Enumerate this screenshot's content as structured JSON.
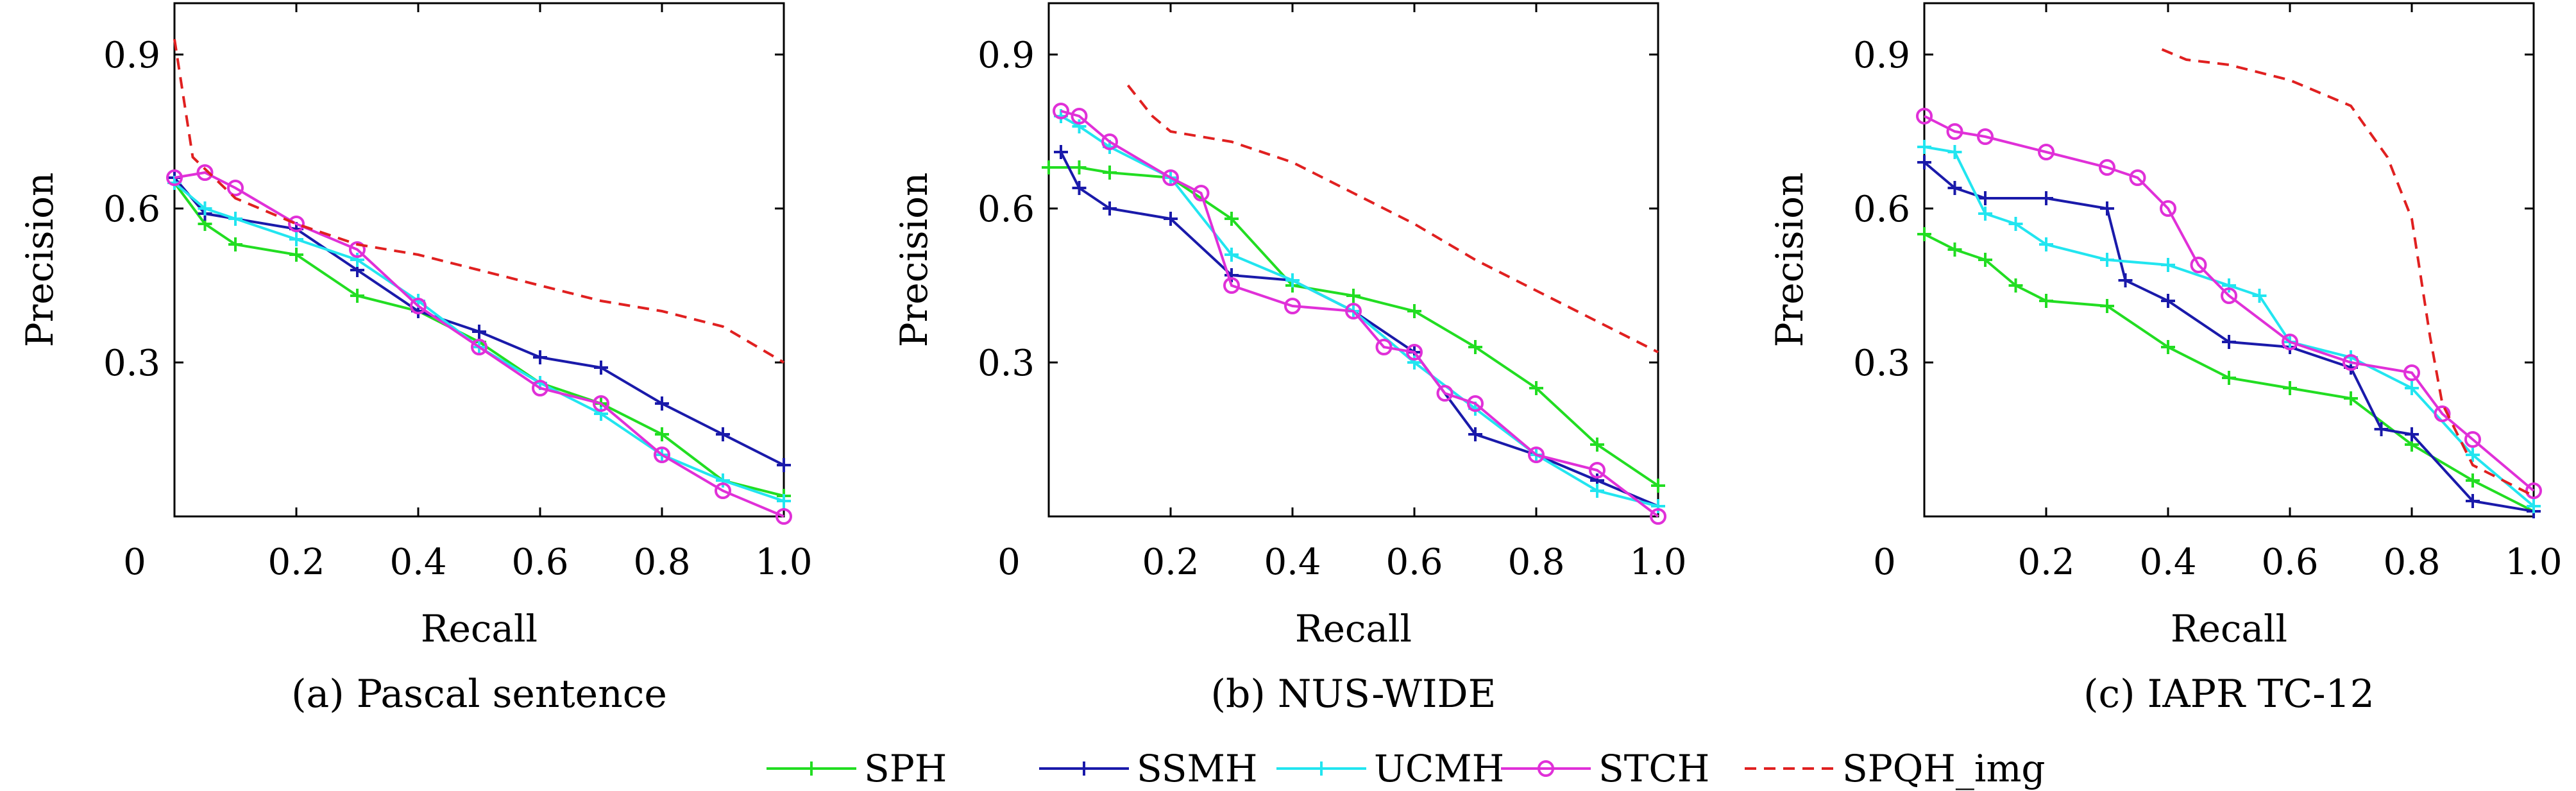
{
  "colors": {
    "SPH": "#22dd22",
    "SSMH": "#1a1aaa",
    "UCMH": "#22e5f0",
    "STCH": "#e030d8",
    "SPQH_img": "#e02020"
  },
  "legend": [
    {
      "key": "SPH",
      "label": "SPH",
      "marker": "plus",
      "dash": false
    },
    {
      "key": "SSMH",
      "label": "SSMH",
      "marker": "plus",
      "dash": false
    },
    {
      "key": "UCMH",
      "label": "UCMH",
      "marker": "plus",
      "dash": false
    },
    {
      "key": "STCH",
      "label": "STCH",
      "marker": "circle",
      "dash": false
    },
    {
      "key": "SPQH_img",
      "label": "SPQH_img",
      "marker": "none",
      "dash": true
    }
  ],
  "chart_data": [
    {
      "type": "line",
      "caption": "(a) Pascal sentence",
      "xlabel": "Recall",
      "ylabel": "Precision",
      "xlim": [
        0,
        1.0
      ],
      "ylim": [
        0,
        1.0
      ],
      "xticks": [
        "0",
        "0.2",
        "0.4",
        "0.6",
        "0.8",
        "1.0"
      ],
      "xtick_values": [
        0,
        0.2,
        0.4,
        0.6,
        0.8,
        1.0
      ],
      "yticks": [
        "0.3",
        "0.6",
        "0.9"
      ],
      "ytick_values": [
        0.3,
        0.6,
        0.9
      ],
      "series": [
        {
          "key": "SPH",
          "x": [
            0,
            0.05,
            0.1,
            0.2,
            0.3,
            0.4,
            0.5,
            0.6,
            0.7,
            0.8,
            0.9,
            1.0
          ],
          "y": [
            0.65,
            0.57,
            0.53,
            0.51,
            0.43,
            0.4,
            0.34,
            0.26,
            0.22,
            0.16,
            0.07,
            0.04
          ]
        },
        {
          "key": "SSMH",
          "x": [
            0,
            0.05,
            0.1,
            0.2,
            0.3,
            0.4,
            0.5,
            0.6,
            0.7,
            0.8,
            0.9,
            1.0
          ],
          "y": [
            0.66,
            0.59,
            0.58,
            0.56,
            0.48,
            0.4,
            0.36,
            0.31,
            0.29,
            0.22,
            0.16,
            0.1
          ]
        },
        {
          "key": "UCMH",
          "x": [
            0,
            0.05,
            0.1,
            0.2,
            0.3,
            0.4,
            0.5,
            0.6,
            0.7,
            0.8,
            0.9,
            1.0
          ],
          "y": [
            0.65,
            0.6,
            0.58,
            0.54,
            0.5,
            0.42,
            0.33,
            0.26,
            0.2,
            0.12,
            0.07,
            0.03
          ]
        },
        {
          "key": "STCH",
          "x": [
            0,
            0.05,
            0.1,
            0.2,
            0.3,
            0.4,
            0.5,
            0.6,
            0.7,
            0.8,
            0.9,
            1.0
          ],
          "y": [
            0.66,
            0.67,
            0.64,
            0.57,
            0.52,
            0.41,
            0.33,
            0.25,
            0.22,
            0.12,
            0.05,
            0.0
          ]
        },
        {
          "key": "SPQH_img",
          "x": [
            0,
            0.03,
            0.1,
            0.2,
            0.3,
            0.4,
            0.5,
            0.6,
            0.7,
            0.8,
            0.9,
            1.0
          ],
          "y": [
            0.93,
            0.7,
            0.62,
            0.57,
            0.53,
            0.51,
            0.48,
            0.45,
            0.42,
            0.4,
            0.37,
            0.3
          ]
        }
      ]
    },
    {
      "type": "line",
      "caption": "(b) NUS-WIDE",
      "xlabel": "Recall",
      "ylabel": "Precision",
      "xlim": [
        0,
        1.0
      ],
      "ylim": [
        0,
        1.0
      ],
      "xticks": [
        "0",
        "0.2",
        "0.4",
        "0.6",
        "0.8",
        "1.0"
      ],
      "xtick_values": [
        0,
        0.2,
        0.4,
        0.6,
        0.8,
        1.0
      ],
      "yticks": [
        "0.3",
        "0.6",
        "0.9"
      ],
      "ytick_values": [
        0.3,
        0.6,
        0.9
      ],
      "series": [
        {
          "key": "SPH",
          "x": [
            0,
            0.05,
            0.1,
            0.2,
            0.3,
            0.4,
            0.5,
            0.6,
            0.7,
            0.8,
            0.9,
            1.0
          ],
          "y": [
            0.68,
            0.68,
            0.67,
            0.66,
            0.58,
            0.45,
            0.43,
            0.4,
            0.33,
            0.25,
            0.14,
            0.06
          ]
        },
        {
          "key": "SSMH",
          "x": [
            0.02,
            0.05,
            0.1,
            0.2,
            0.3,
            0.4,
            0.5,
            0.6,
            0.7,
            0.8,
            0.9,
            1.0
          ],
          "y": [
            0.71,
            0.64,
            0.6,
            0.58,
            0.47,
            0.46,
            0.4,
            0.32,
            0.16,
            0.12,
            0.07,
            0.02
          ]
        },
        {
          "key": "UCMH",
          "x": [
            0.02,
            0.05,
            0.1,
            0.2,
            0.3,
            0.4,
            0.5,
            0.6,
            0.7,
            0.8,
            0.9,
            1.0
          ],
          "y": [
            0.78,
            0.76,
            0.72,
            0.66,
            0.51,
            0.46,
            0.4,
            0.3,
            0.21,
            0.12,
            0.05,
            0.02
          ]
        },
        {
          "key": "STCH",
          "x": [
            0.02,
            0.05,
            0.1,
            0.2,
            0.25,
            0.3,
            0.4,
            0.5,
            0.55,
            0.6,
            0.65,
            0.7,
            0.8,
            0.9,
            1.0
          ],
          "y": [
            0.79,
            0.78,
            0.73,
            0.66,
            0.63,
            0.45,
            0.41,
            0.4,
            0.33,
            0.32,
            0.24,
            0.22,
            0.12,
            0.09,
            0.0
          ]
        },
        {
          "key": "SPQH_img",
          "x": [
            0.13,
            0.17,
            0.2,
            0.3,
            0.4,
            0.5,
            0.6,
            0.7,
            0.8,
            0.9,
            1.0
          ],
          "y": [
            0.84,
            0.78,
            0.75,
            0.73,
            0.69,
            0.63,
            0.57,
            0.5,
            0.44,
            0.38,
            0.32
          ]
        }
      ]
    },
    {
      "type": "line",
      "caption": "(c) IAPR TC-12",
      "xlabel": "Recall",
      "ylabel": "Precision",
      "xlim": [
        0,
        1.0
      ],
      "ylim": [
        0,
        1.0
      ],
      "xticks": [
        "0",
        "0.2",
        "0.4",
        "0.6",
        "0.8",
        "1.0"
      ],
      "xtick_values": [
        0,
        0.2,
        0.4,
        0.6,
        0.8,
        1.0
      ],
      "yticks": [
        "0.3",
        "0.6",
        "0.9"
      ],
      "ytick_values": [
        0.3,
        0.6,
        0.9
      ],
      "series": [
        {
          "key": "SPH",
          "x": [
            0,
            0.05,
            0.1,
            0.15,
            0.2,
            0.3,
            0.4,
            0.5,
            0.6,
            0.7,
            0.8,
            0.9,
            1.0
          ],
          "y": [
            0.55,
            0.52,
            0.5,
            0.45,
            0.42,
            0.41,
            0.33,
            0.27,
            0.25,
            0.23,
            0.14,
            0.07,
            0.01
          ]
        },
        {
          "key": "SSMH",
          "x": [
            0,
            0.05,
            0.1,
            0.2,
            0.3,
            0.33,
            0.4,
            0.5,
            0.6,
            0.7,
            0.75,
            0.8,
            0.9,
            1.0
          ],
          "y": [
            0.69,
            0.64,
            0.62,
            0.62,
            0.6,
            0.46,
            0.42,
            0.34,
            0.33,
            0.29,
            0.17,
            0.16,
            0.03,
            0.01
          ]
        },
        {
          "key": "UCMH",
          "x": [
            0,
            0.05,
            0.1,
            0.15,
            0.2,
            0.3,
            0.4,
            0.5,
            0.55,
            0.6,
            0.7,
            0.8,
            0.9,
            1.0
          ],
          "y": [
            0.72,
            0.71,
            0.59,
            0.57,
            0.53,
            0.5,
            0.49,
            0.45,
            0.43,
            0.34,
            0.31,
            0.25,
            0.12,
            0.02
          ]
        },
        {
          "key": "STCH",
          "x": [
            0,
            0.05,
            0.1,
            0.2,
            0.3,
            0.35,
            0.4,
            0.45,
            0.5,
            0.6,
            0.7,
            0.8,
            0.85,
            0.9,
            1.0
          ],
          "y": [
            0.78,
            0.75,
            0.74,
            0.71,
            0.68,
            0.66,
            0.6,
            0.49,
            0.43,
            0.34,
            0.3,
            0.28,
            0.2,
            0.15,
            0.05
          ]
        },
        {
          "key": "SPQH_img",
          "x": [
            0.39,
            0.43,
            0.5,
            0.6,
            0.7,
            0.76,
            0.8,
            0.83,
            0.85,
            0.9,
            1.0
          ],
          "y": [
            0.91,
            0.89,
            0.88,
            0.85,
            0.8,
            0.7,
            0.58,
            0.35,
            0.22,
            0.1,
            0.04
          ]
        }
      ]
    }
  ]
}
